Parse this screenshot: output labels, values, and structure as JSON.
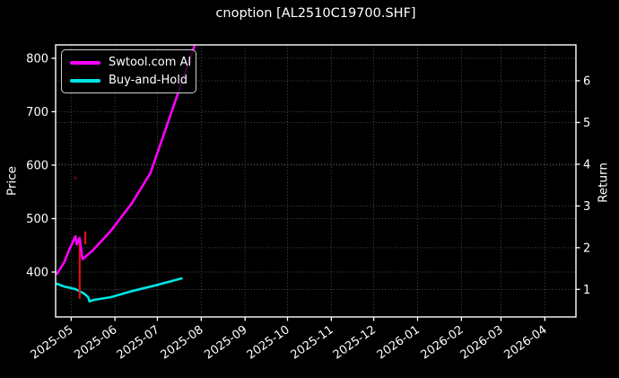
{
  "title": "cnoption [AL2510C19700.SHF]",
  "colors": {
    "background": "#000000",
    "foreground": "#ffffff",
    "grid": "#4f4f4f",
    "swtool_line": "#ff00ff",
    "buyhold_line": "#00e5e5",
    "annotation_red": "#dd1111",
    "annotation_dot": "#4a0808",
    "legend_border": "#cfcfcf"
  },
  "legend": {
    "items": [
      {
        "label": "Swtool.com AI",
        "color": "#ff00ff"
      },
      {
        "label": "Buy-and-Hold",
        "color": "#00e5e5"
      }
    ]
  },
  "axes": {
    "left_label": "Price",
    "right_label": "Return",
    "left_ticks": [
      {
        "value": 400,
        "label": "400"
      },
      {
        "value": 500,
        "label": "500"
      },
      {
        "value": 600,
        "label": "600"
      },
      {
        "value": 700,
        "label": "700"
      },
      {
        "value": 800,
        "label": "800"
      }
    ],
    "right_ticks": [
      {
        "value": 1,
        "label": "1"
      },
      {
        "value": 2,
        "label": "2"
      },
      {
        "value": 3,
        "label": "3"
      },
      {
        "value": 4,
        "label": "4"
      },
      {
        "value": 5,
        "label": "5"
      },
      {
        "value": 6,
        "label": "6"
      }
    ],
    "x_ticks": [
      {
        "date": "2025-05-01",
        "label": "2025-05"
      },
      {
        "date": "2025-06-01",
        "label": "2025-06"
      },
      {
        "date": "2025-07-01",
        "label": "2025-07"
      },
      {
        "date": "2025-08-01",
        "label": "2025-08"
      },
      {
        "date": "2025-09-01",
        "label": "2025-09"
      },
      {
        "date": "2025-10-01",
        "label": "2025-10"
      },
      {
        "date": "2025-11-01",
        "label": "2025-11"
      },
      {
        "date": "2025-12-01",
        "label": "2025-12"
      },
      {
        "date": "2026-01-01",
        "label": "2026-01"
      },
      {
        "date": "2026-02-01",
        "label": "2026-02"
      },
      {
        "date": "2026-03-01",
        "label": "2026-03"
      },
      {
        "date": "2026-04-01",
        "label": "2026-04"
      }
    ]
  },
  "chart_data": {
    "type": "line",
    "title": "cnoption [AL2510C19700.SHF]",
    "xlabel": "",
    "ylabel_left": "Price",
    "ylabel_right": "Return",
    "grid": true,
    "legend_position": "upper left",
    "x_domain": [
      "2025-04-20",
      "2026-04-23"
    ],
    "ylim_left": [
      316,
      825
    ],
    "ylim_right": [
      0.34,
      6.86
    ],
    "series": [
      {
        "name": "Swtool.com AI",
        "color": "#ff00ff",
        "axis": "left",
        "zorder": 3,
        "points": [
          [
            "2025-04-21",
            397
          ],
          [
            "2025-04-26",
            418
          ],
          [
            "2025-04-30",
            444
          ],
          [
            "2025-05-04",
            467
          ],
          [
            "2025-05-05",
            452
          ],
          [
            "2025-05-07",
            464
          ],
          [
            "2025-05-09",
            424
          ],
          [
            "2025-05-16",
            440
          ],
          [
            "2025-05-29",
            477
          ],
          [
            "2025-06-13",
            529
          ],
          [
            "2025-06-26",
            585
          ],
          [
            "2025-07-27",
            822
          ]
        ]
      },
      {
        "name": "Buy-and-Hold",
        "color": "#00e5e5",
        "axis": "left",
        "zorder": 1,
        "points": [
          [
            "2025-04-21",
            378
          ],
          [
            "2025-04-26",
            373
          ],
          [
            "2025-05-04",
            368
          ],
          [
            "2025-05-10",
            360
          ],
          [
            "2025-05-13",
            353
          ],
          [
            "2025-05-14",
            345
          ],
          [
            "2025-05-17",
            348
          ],
          [
            "2025-05-29",
            353
          ],
          [
            "2025-06-14",
            365
          ],
          [
            "2025-07-01",
            376
          ],
          [
            "2025-07-18",
            388
          ]
        ]
      }
    ],
    "annotations": [
      {
        "type": "vline-segment",
        "date": "2025-05-07",
        "from": 455,
        "to": 350,
        "color": "#dd1111",
        "zorder": 2
      },
      {
        "type": "vline-segment",
        "date": "2025-05-11",
        "from": 476,
        "to": 452,
        "color": "#dd1111",
        "zorder": 2
      },
      {
        "type": "dot",
        "date": "2025-05-04",
        "value": 576,
        "color": "#4a0808",
        "zorder": 2
      }
    ]
  }
}
